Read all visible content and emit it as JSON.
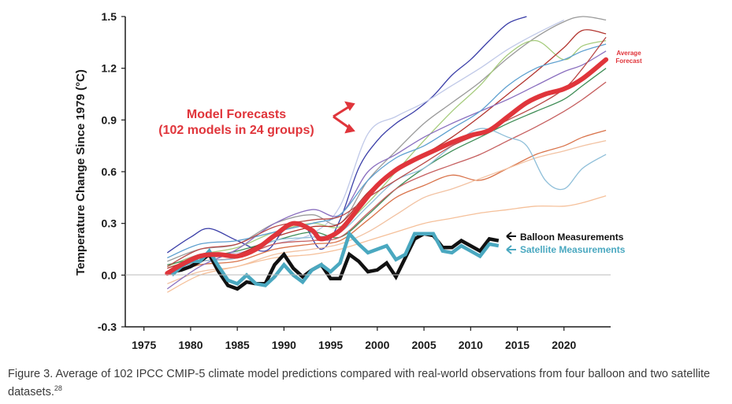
{
  "chart_data": {
    "type": "line",
    "title": "",
    "xlabel": "",
    "ylabel": "Temperature Change Since 1979 (°C)",
    "xlim": [
      1973,
      2025
    ],
    "ylim": [
      -0.3,
      1.5
    ],
    "xticks": [
      "1975",
      "1980",
      "1985",
      "1990",
      "1995",
      "2000",
      "2005",
      "2010",
      "2015",
      "2020"
    ],
    "yticks": [
      "-0.3",
      "0.0",
      "0.3",
      "0.6",
      "0.9",
      "1.2",
      "1.5"
    ],
    "grid": "none",
    "annotations": {
      "model_forecasts_line1": "Model Forecasts",
      "model_forecasts_line2": "(102 models in 24 groups)",
      "average_forecast_line1": "Average",
      "average_forecast_line2": "Forecast",
      "balloon_label": "Balloon Measurements",
      "satellite_label": "Satellite Measurements"
    },
    "series": [
      {
        "name": "Average Forecast",
        "color": "#e0353b",
        "x": [
          1977.5,
          1979,
          1981,
          1983,
          1985,
          1987,
          1989,
          1991,
          1993,
          1994,
          1996,
          1998,
          2000,
          2002,
          2004,
          2006,
          2008,
          2010,
          2012,
          2014,
          2016,
          2018,
          2020,
          2022,
          2024.5
        ],
        "values": [
          0.01,
          0.06,
          0.11,
          0.12,
          0.11,
          0.15,
          0.23,
          0.3,
          0.26,
          0.21,
          0.26,
          0.39,
          0.52,
          0.61,
          0.67,
          0.72,
          0.77,
          0.81,
          0.84,
          0.92,
          1.0,
          1.05,
          1.08,
          1.14,
          1.25
        ]
      },
      {
        "name": "Balloon Measurements",
        "color": "#111111",
        "x": [
          1978,
          1979,
          1980,
          1981,
          1982,
          1983,
          1984,
          1985,
          1986,
          1987,
          1988,
          1989,
          1990,
          1991,
          1992,
          1993,
          1994,
          1995,
          1996,
          1997,
          1998,
          1999,
          2000,
          2001,
          2002,
          2003,
          2004,
          2005,
          2006,
          2007,
          2008,
          2009,
          2010,
          2011,
          2012,
          2013
        ],
        "values": [
          0.02,
          0.03,
          0.05,
          0.08,
          0.12,
          0.02,
          -0.06,
          -0.08,
          -0.04,
          -0.05,
          -0.05,
          0.06,
          0.12,
          0.04,
          -0.01,
          0.03,
          0.06,
          -0.02,
          -0.02,
          0.12,
          0.08,
          0.02,
          0.03,
          0.07,
          -0.01,
          0.1,
          0.21,
          0.24,
          0.23,
          0.16,
          0.16,
          0.2,
          0.17,
          0.14,
          0.21,
          0.2
        ]
      },
      {
        "name": "Satellite Measurements",
        "color": "#4aa8c0",
        "x": [
          1978,
          1979,
          1980,
          1981,
          1982,
          1983,
          1984,
          1985,
          1986,
          1987,
          1988,
          1989,
          1990,
          1991,
          1992,
          1993,
          1994,
          1995,
          1996,
          1997,
          1998,
          1999,
          2000,
          2001,
          2002,
          2003,
          2004,
          2005,
          2006,
          2007,
          2008,
          2009,
          2010,
          2011,
          2012,
          2013
        ],
        "values": [
          0.0,
          0.05,
          0.08,
          0.08,
          0.14,
          0.05,
          -0.03,
          -0.05,
          0.0,
          -0.05,
          -0.06,
          -0.01,
          0.06,
          0.0,
          -0.04,
          0.03,
          0.06,
          0.02,
          0.07,
          0.24,
          0.18,
          0.13,
          0.15,
          0.17,
          0.09,
          0.12,
          0.24,
          0.24,
          0.24,
          0.14,
          0.13,
          0.17,
          0.14,
          0.11,
          0.18,
          0.17
        ]
      },
      {
        "name": "",
        "color": "#3b3fa8",
        "x": [
          1977.5,
          1980,
          1982,
          1985,
          1988,
          1990,
          1992,
          1994,
          1996,
          1998,
          2000,
          2002,
          2004,
          2006,
          2008,
          2010,
          2012,
          2014,
          2016
        ],
        "values": [
          0.13,
          0.22,
          0.27,
          0.2,
          0.14,
          0.26,
          0.3,
          0.15,
          0.32,
          0.62,
          0.78,
          0.88,
          0.95,
          1.04,
          1.16,
          1.25,
          1.36,
          1.46,
          1.5
        ]
      },
      {
        "name": "",
        "color": "#c0c9e8",
        "x": [
          1977.5,
          1981,
          1985,
          1989,
          1993,
          1996,
          1999,
          2002,
          2005,
          2008,
          2011,
          2014,
          2017,
          2020
        ],
        "values": [
          0.05,
          0.12,
          0.13,
          0.18,
          0.24,
          0.4,
          0.82,
          0.92,
          1.0,
          1.1,
          1.2,
          1.31,
          1.4,
          1.48
        ]
      },
      {
        "name": "",
        "color": "#9a9a9a",
        "x": [
          1977.5,
          1981,
          1985,
          1989,
          1993,
          1996,
          1999,
          2002,
          2005,
          2008,
          2011,
          2014,
          2017,
          2020,
          2022,
          2024.5
        ],
        "values": [
          0.08,
          0.15,
          0.18,
          0.3,
          0.35,
          0.3,
          0.55,
          0.72,
          0.88,
          1.0,
          1.12,
          1.26,
          1.38,
          1.47,
          1.5,
          1.48
        ]
      },
      {
        "name": "",
        "color": "#a5cb7b",
        "x": [
          1977.5,
          1981,
          1985,
          1989,
          1993,
          1996,
          1999,
          2002,
          2005,
          2008,
          2011,
          2014,
          2017,
          2020,
          2022,
          2024.5
        ],
        "values": [
          0.05,
          0.12,
          0.16,
          0.25,
          0.3,
          0.28,
          0.42,
          0.6,
          0.78,
          0.95,
          1.1,
          1.28,
          1.36,
          1.25,
          1.33,
          1.36
        ]
      },
      {
        "name": "",
        "color": "#3f8d56",
        "x": [
          1977.5,
          1981,
          1985,
          1989,
          1993,
          1996,
          1999,
          2002,
          2005,
          2008,
          2011,
          2014,
          2017,
          2020,
          2022,
          2024.5
        ],
        "values": [
          0.06,
          0.1,
          0.14,
          0.2,
          0.25,
          0.22,
          0.35,
          0.5,
          0.62,
          0.72,
          0.8,
          0.88,
          0.95,
          1.02,
          1.1,
          1.2
        ]
      },
      {
        "name": "",
        "color": "#b2352f",
        "x": [
          1977.5,
          1981,
          1985,
          1989,
          1993,
          1996,
          1999,
          2002,
          2005,
          2008,
          2011,
          2014,
          2017,
          2020,
          2022,
          2024.5
        ],
        "values": [
          0.04,
          0.1,
          0.12,
          0.22,
          0.28,
          0.3,
          0.48,
          0.62,
          0.7,
          0.8,
          0.92,
          1.05,
          1.18,
          1.32,
          1.42,
          1.4
        ]
      },
      {
        "name": "",
        "color": "#c66060",
        "x": [
          1977.5,
          1981,
          1985,
          1989,
          1993,
          1996,
          1999,
          2002,
          2005,
          2008,
          2011,
          2014,
          2017,
          2020,
          2022,
          2024.5
        ],
        "values": [
          0.02,
          0.08,
          0.1,
          0.18,
          0.2,
          0.22,
          0.36,
          0.5,
          0.58,
          0.64,
          0.7,
          0.78,
          0.86,
          0.95,
          1.02,
          1.12
        ]
      },
      {
        "name": "",
        "color": "#d9734a",
        "x": [
          1977.5,
          1981,
          1985,
          1989,
          1993,
          1996,
          1999,
          2002,
          2005,
          2008,
          2011,
          2014,
          2017,
          2020,
          2022,
          2024.5
        ],
        "values": [
          0.0,
          0.06,
          0.08,
          0.15,
          0.18,
          0.2,
          0.32,
          0.45,
          0.52,
          0.58,
          0.55,
          0.62,
          0.7,
          0.75,
          0.8,
          0.84
        ]
      },
      {
        "name": "",
        "color": "#f2c2a2",
        "x": [
          1977.5,
          1981,
          1985,
          1989,
          1993,
          1996,
          1999,
          2002,
          2005,
          2008,
          2011,
          2014,
          2017,
          2020,
          2022,
          2024.5
        ],
        "values": [
          -0.05,
          0.02,
          0.05,
          0.12,
          0.15,
          0.18,
          0.25,
          0.35,
          0.45,
          0.5,
          0.56,
          0.62,
          0.68,
          0.72,
          0.75,
          0.78
        ]
      },
      {
        "name": "",
        "color": "#f5c09a",
        "x": [
          1977.5,
          1981,
          1985,
          1989,
          1993,
          1996,
          1999,
          2002,
          2005,
          2008,
          2011,
          2014,
          2017,
          2020,
          2022,
          2024.5
        ],
        "values": [
          -0.1,
          0.0,
          0.05,
          0.1,
          0.12,
          0.15,
          0.2,
          0.25,
          0.3,
          0.33,
          0.36,
          0.38,
          0.4,
          0.4,
          0.42,
          0.46
        ]
      },
      {
        "name": "",
        "color": "#8fbfd9",
        "x": [
          1977.5,
          1981,
          1985,
          1989,
          1993,
          1996,
          1999,
          2002,
          2005,
          2008,
          2011,
          2014,
          2016,
          2018,
          2020,
          2022,
          2024.5
        ],
        "values": [
          0.02,
          0.08,
          0.1,
          0.2,
          0.22,
          0.25,
          0.4,
          0.55,
          0.62,
          0.75,
          0.85,
          0.8,
          0.75,
          0.55,
          0.5,
          0.62,
          0.7
        ]
      },
      {
        "name": "",
        "color": "#8a6fbf",
        "x": [
          1977.5,
          1981,
          1985,
          1989,
          1993,
          1996,
          1999,
          2002,
          2005,
          2008,
          2011,
          2014,
          2017,
          2020,
          2022,
          2024.5
        ],
        "values": [
          -0.08,
          0.05,
          0.15,
          0.3,
          0.38,
          0.35,
          0.6,
          0.7,
          0.8,
          0.88,
          0.95,
          1.02,
          1.1,
          1.18,
          1.22,
          1.3
        ]
      },
      {
        "name": "",
        "color": "#5c9fcf",
        "x": [
          1977.5,
          1981,
          1985,
          1989,
          1993,
          1996,
          1999,
          2002,
          2005,
          2008,
          2011,
          2014,
          2017,
          2020,
          2022,
          2024.5
        ],
        "values": [
          0.1,
          0.18,
          0.2,
          0.25,
          0.3,
          0.35,
          0.55,
          0.68,
          0.75,
          0.85,
          0.95,
          1.1,
          1.2,
          1.25,
          1.3,
          1.34
        ]
      },
      {
        "name": "",
        "color": "#b94a48",
        "x": [
          1977.5,
          1981,
          1985,
          1989,
          1993,
          1996,
          1999,
          2002,
          2005,
          2008,
          2011,
          2014,
          2017,
          2020,
          2022,
          2024.5
        ],
        "values": [
          0.05,
          0.15,
          0.18,
          0.28,
          0.32,
          0.34,
          0.45,
          0.55,
          0.65,
          0.75,
          0.82,
          0.9,
          0.98,
          1.08,
          1.2,
          1.38
        ]
      }
    ]
  },
  "caption": {
    "text": "Figure 3. Average of 102 IPCC CMIP-5 climate model predictions compared with real-world observations from four balloon and two satellite datasets.",
    "reference": "28"
  }
}
